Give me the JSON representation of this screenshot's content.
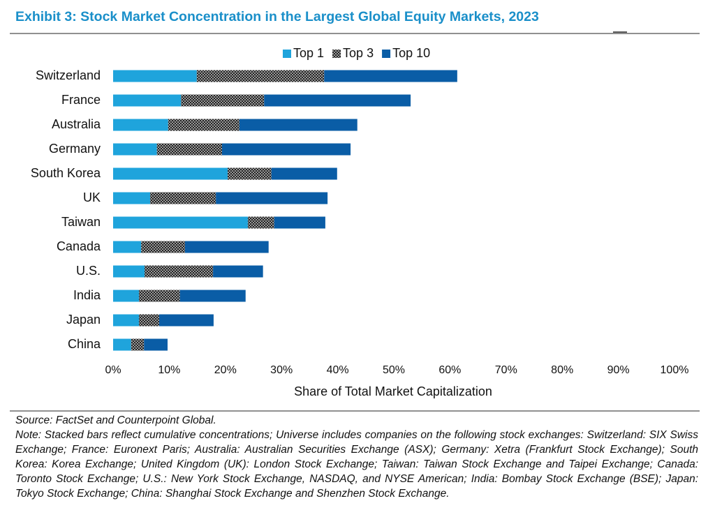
{
  "chart_data": {
    "type": "stacked-barh",
    "title": "Exhibit 3: Stock Market Concentration in the Largest Global Equity Markets, 2023",
    "xlabel": "Share of Total Market Capitalization",
    "categories": [
      "Switzerland",
      "France",
      "Australia",
      "Germany",
      "South Korea",
      "UK",
      "Taiwan",
      "Canada",
      "U.S.",
      "India",
      "Japan",
      "China"
    ],
    "series": [
      {
        "name": "Top 1",
        "color": "#1fa4dc",
        "values": [
          14.9,
          12.1,
          9.8,
          7.8,
          20.4,
          6.6,
          24.0,
          5.0,
          5.6,
          4.6,
          4.6,
          3.2
        ]
      },
      {
        "name": "Top 3",
        "color": "#222222",
        "hatch": true,
        "values": [
          22.7,
          14.8,
          12.7,
          11.6,
          7.8,
          11.7,
          4.7,
          7.8,
          12.2,
          7.3,
          3.6,
          2.3
        ]
      },
      {
        "name": "Top 10",
        "color": "#0a5da6",
        "values": [
          23.7,
          26.1,
          21.0,
          22.9,
          11.7,
          19.9,
          9.1,
          14.9,
          8.9,
          11.7,
          9.7,
          4.2
        ]
      }
    ],
    "xlim": [
      0,
      100
    ],
    "xticks": [
      {
        "value": 0,
        "label": "0%"
      },
      {
        "value": 10,
        "label": "10%"
      },
      {
        "value": 20,
        "label": "20%"
      },
      {
        "value": 30,
        "label": "30%"
      },
      {
        "value": 40,
        "label": "40%"
      },
      {
        "value": 50,
        "label": "50%"
      },
      {
        "value": 60,
        "label": "60%"
      },
      {
        "value": 70,
        "label": "70%"
      },
      {
        "value": 80,
        "label": "80%"
      },
      {
        "value": 90,
        "label": "90%"
      },
      {
        "value": 100,
        "label": "100%"
      }
    ],
    "legend": "top",
    "source": "Source: FactSet and Counterpoint Global.",
    "note": "Note: Stacked bars reflect cumulative concentrations; Universe includes companies on the following stock exchanges: Switzerland: SIX Swiss Exchange; France: Euronext Paris; Australia: Australian Securities Exchange (ASX); Germany: Xetra (Frankfurt Stock Exchange); South Korea: Korea Exchange; United Kingdom (UK): London Stock Exchange; Taiwan: Taiwan Stock Exchange and Taipei Exchange; Canada: Toronto Stock Exchange; U.S.: New York Stock Exchange, NASDAQ, and NYSE American; India: Bombay Stock Exchange (BSE); Japan: Tokyo Stock Exchange; China: Shanghai Stock Exchange and Shenzhen Stock Exchange."
  }
}
